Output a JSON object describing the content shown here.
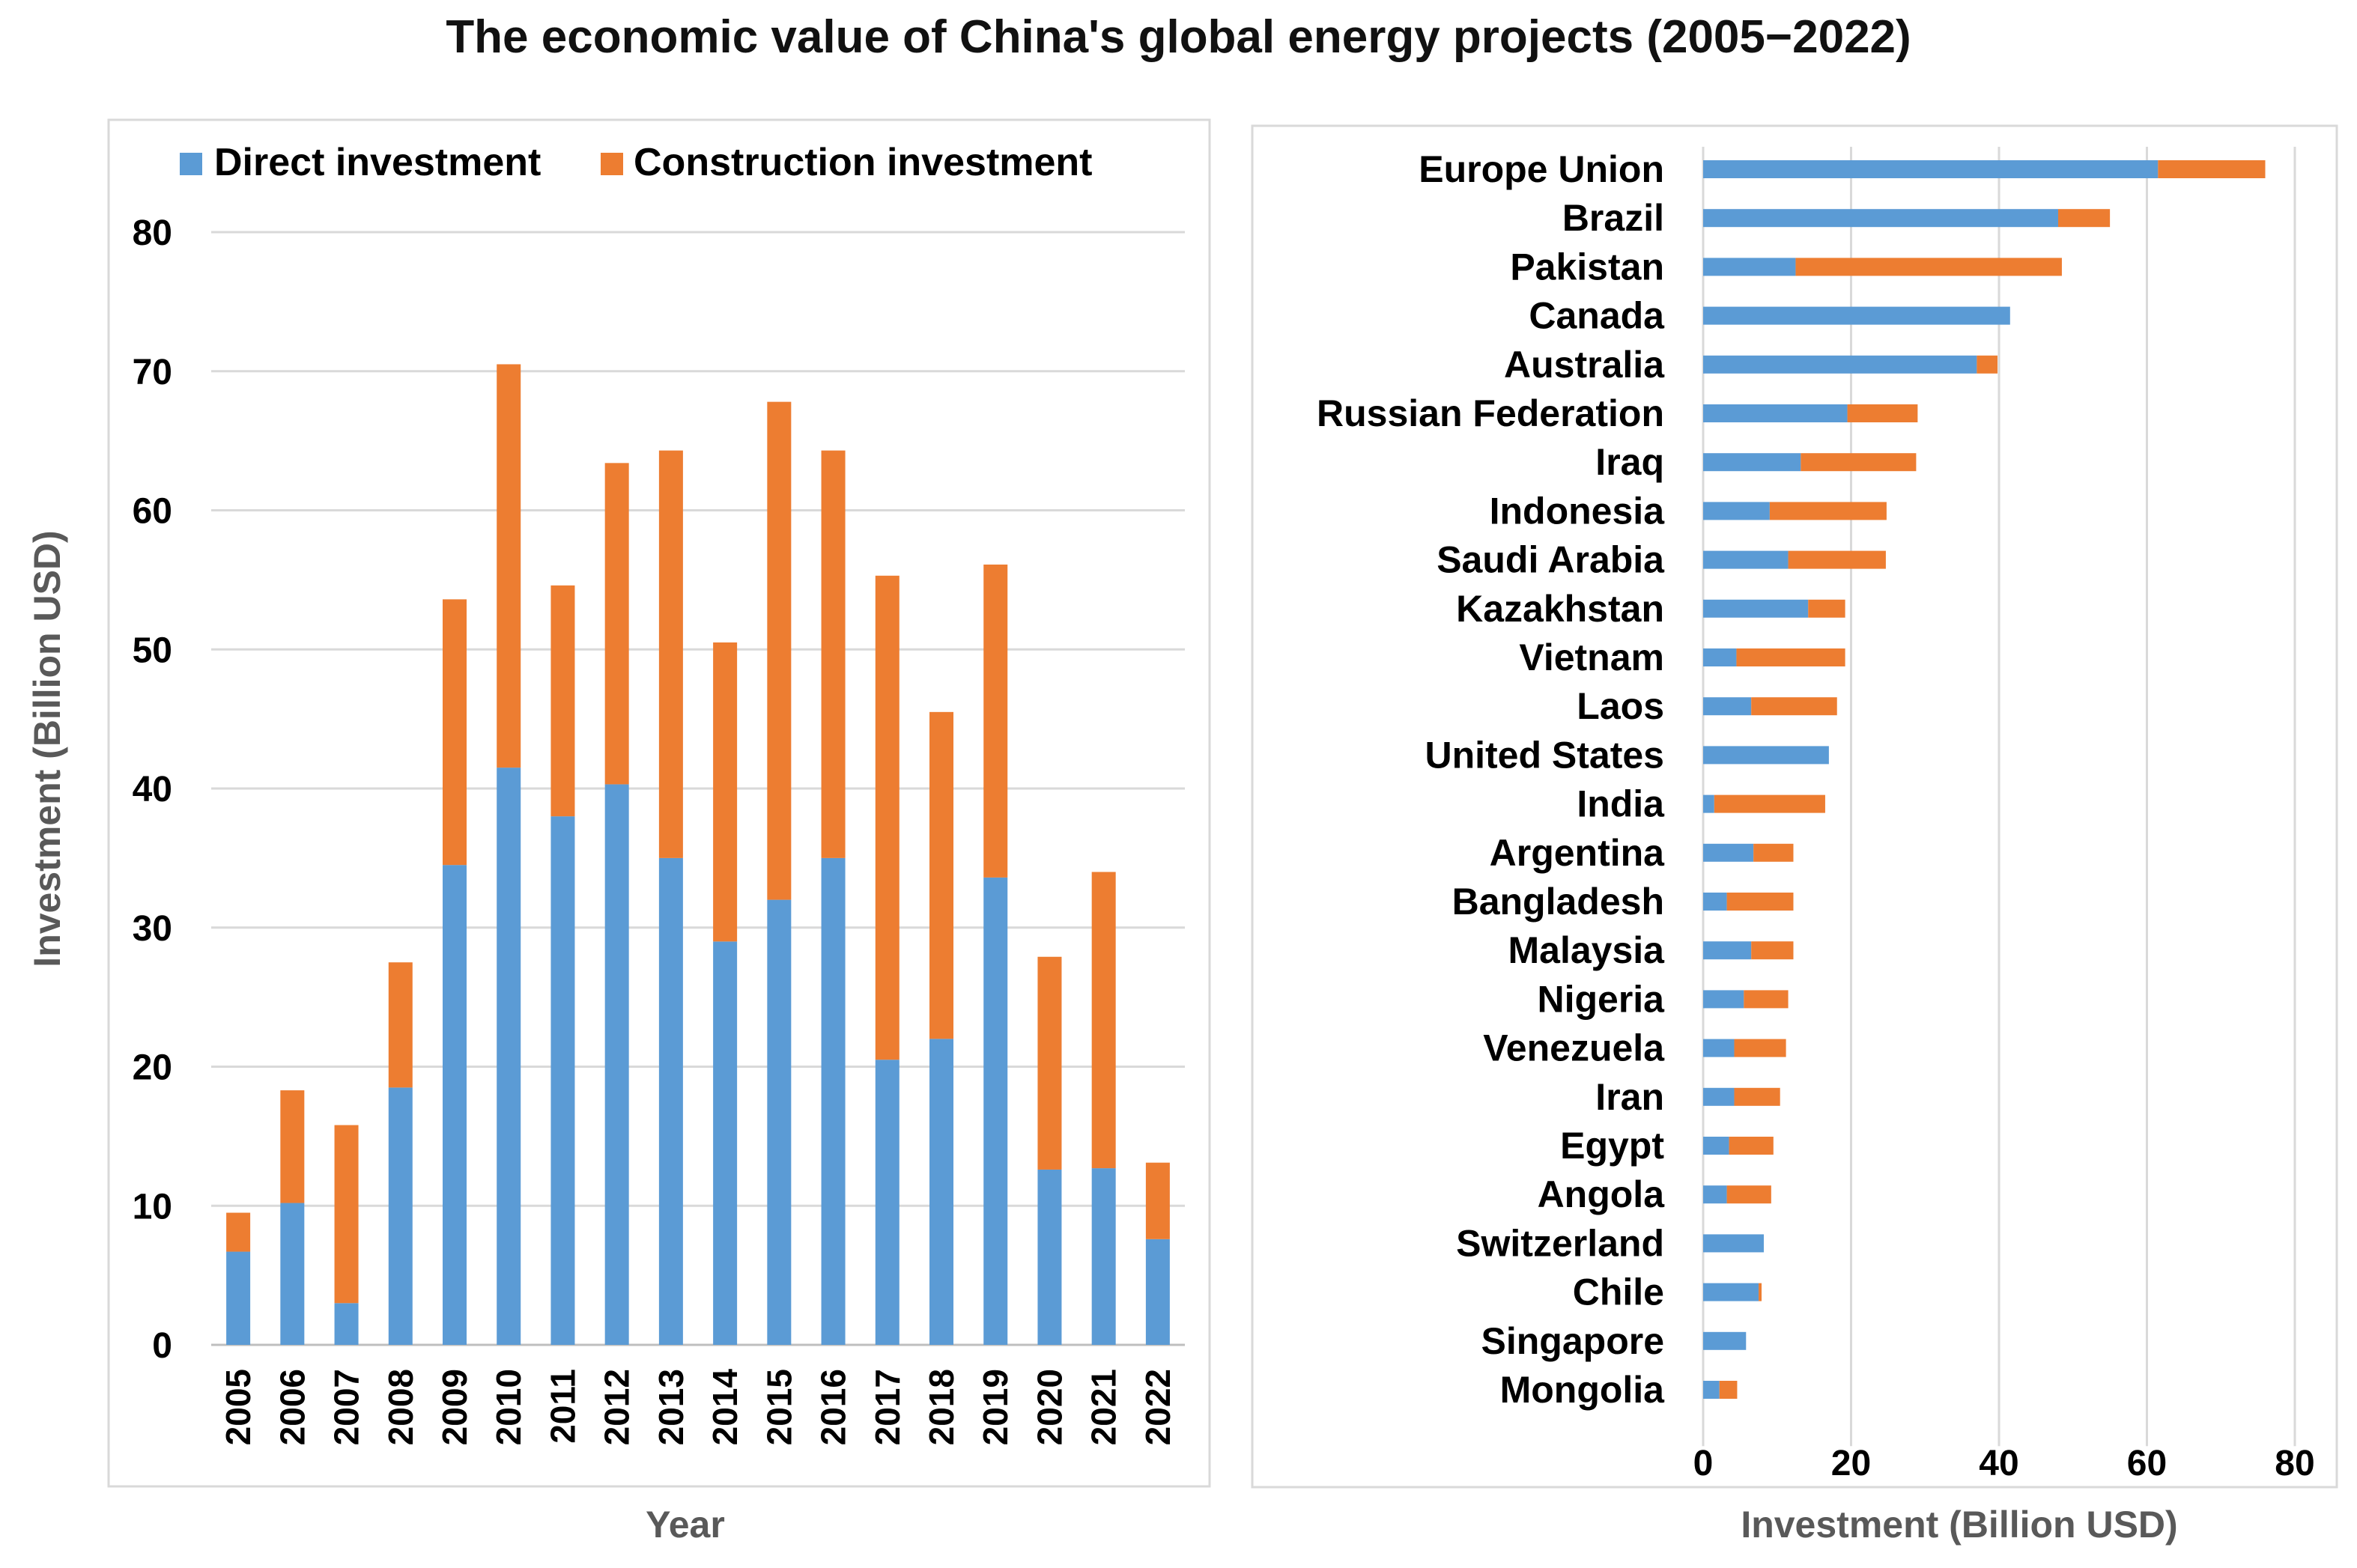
{
  "title": "The economic value of China's global energy projects (2005−2022)",
  "colors": {
    "direct": "#5B9BD5",
    "construction": "#ED7D31",
    "grid": "#D9D9D9",
    "frame": "#D9D9D9"
  },
  "chart_data": [
    {
      "type": "bar",
      "stacked": true,
      "orientation": "vertical",
      "legend": [
        "Direct investment",
        "Construction investment"
      ],
      "legend_position": "top",
      "xlabel": "Year",
      "ylabel": "Investment (Billion USD)",
      "ylim": [
        0,
        80
      ],
      "yticks": [
        "0",
        "10",
        "20",
        "30",
        "40",
        "50",
        "60",
        "70",
        "80"
      ],
      "categories": [
        "2005",
        "2006",
        "2007",
        "2008",
        "2009",
        "2010",
        "2011",
        "2012",
        "2013",
        "2014",
        "2015",
        "2016",
        "2017",
        "2018",
        "2019",
        "2020",
        "2021",
        "2022"
      ],
      "series": [
        {
          "name": "Direct investment",
          "values": [
            6.7,
            10.2,
            3.0,
            18.5,
            34.5,
            41.5,
            38.0,
            40.3,
            35.0,
            29.0,
            32.0,
            35.0,
            20.5,
            22.0,
            33.6,
            12.6,
            12.7,
            7.6
          ]
        },
        {
          "name": "Construction investment",
          "values": [
            2.8,
            8.1,
            12.8,
            9.0,
            19.1,
            29.0,
            16.6,
            23.1,
            29.3,
            21.5,
            35.8,
            29.3,
            34.8,
            23.5,
            22.5,
            15.3,
            21.3,
            5.5
          ]
        }
      ]
    },
    {
      "type": "bar",
      "stacked": true,
      "orientation": "horizontal",
      "xlabel": "Investment (Billion USD)",
      "ylabel": "",
      "xlim": [
        0,
        80
      ],
      "xticks": [
        "0",
        "20",
        "40",
        "60",
        "80"
      ],
      "categories": [
        "Europe Union",
        "Brazil",
        "Pakistan",
        "Canada",
        "Australia",
        "Russian Federation",
        "Iraq",
        "Indonesia",
        "Saudi Arabia",
        "Kazakhstan",
        "Vietnam",
        "Laos",
        "United States",
        "India",
        "Argentina",
        "Bangladesh",
        "Malaysia",
        "Nigeria",
        "Venezuela",
        "Iran",
        "Egypt",
        "Angola",
        "Switzerland",
        "Chile",
        "Singapore",
        "Mongolia"
      ],
      "series": [
        {
          "name": "Direct investment",
          "values": [
            61.5,
            48.0,
            12.5,
            41.5,
            37.0,
            19.5,
            13.2,
            9.0,
            11.5,
            14.2,
            4.5,
            6.5,
            17.0,
            1.5,
            6.8,
            3.2,
            6.5,
            5.5,
            4.2,
            4.2,
            3.5,
            3.2,
            8.2,
            7.5,
            5.8,
            2.2
          ]
        },
        {
          "name": "Construction investment",
          "values": [
            14.5,
            7.0,
            36.0,
            0,
            2.8,
            9.5,
            15.6,
            15.8,
            13.2,
            5.0,
            14.7,
            11.6,
            0,
            15.0,
            5.4,
            9.0,
            5.7,
            6.0,
            7.0,
            6.2,
            6.0,
            6.0,
            0,
            0.4,
            0,
            2.4
          ]
        }
      ]
    }
  ]
}
